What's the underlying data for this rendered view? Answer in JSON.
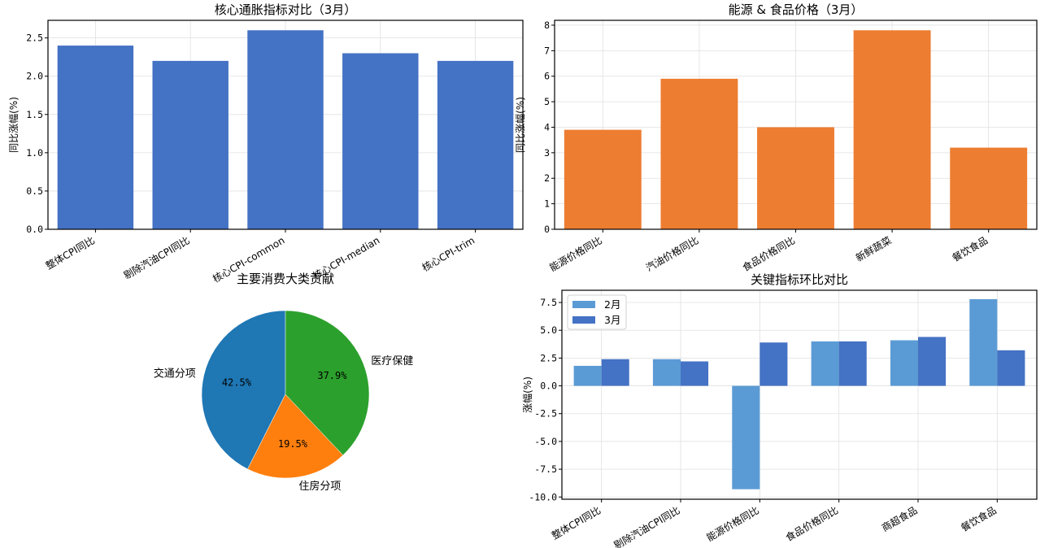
{
  "chart_data": [
    {
      "type": "bar",
      "title": "核心通胀指标对比（3月）",
      "xlabel": "",
      "ylabel": "同比涨幅(%)",
      "categories": [
        "整体CPI同比",
        "剔除汽油CPI同比",
        "核心CPI-common",
        "核心CPI-median",
        "核心CPI-trim"
      ],
      "values": [
        2.4,
        2.2,
        2.6,
        2.3,
        2.2
      ],
      "ylim": [
        0,
        2.73
      ],
      "yticks": [
        "0.0",
        "0.5",
        "1.0",
        "1.5",
        "2.0",
        "2.5"
      ],
      "color": "#4472C4",
      "grid": true
    },
    {
      "type": "bar",
      "title": "能源 & 食品价格（3月）",
      "xlabel": "",
      "ylabel": "同比涨幅(%)",
      "categories": [
        "能源价格同比",
        "汽油价格同比",
        "食品价格同比",
        "新鲜蔬菜",
        "餐饮食品"
      ],
      "values": [
        3.9,
        5.9,
        4.0,
        7.8,
        3.2
      ],
      "ylim": [
        0,
        8.19
      ],
      "yticks": [
        "0",
        "1",
        "2",
        "3",
        "4",
        "5",
        "6",
        "7",
        "8"
      ],
      "color": "#ED7D31",
      "grid": true
    },
    {
      "type": "pie",
      "title": "主要消费大类贡献",
      "labels": [
        "交通分项",
        "住房分项",
        "医疗保健"
      ],
      "values": [
        42.5,
        19.5,
        37.9
      ],
      "pct_labels": [
        "42.5%",
        "19.5%",
        "37.9%"
      ],
      "colors": [
        "#1f77b4",
        "#ff7f0e",
        "#2ca02c"
      ],
      "startangle": 90
    },
    {
      "type": "bar",
      "title": "关键指标环比对比",
      "xlabel": "",
      "ylabel": "涨幅(%)",
      "categories": [
        "整体CPI同比",
        "剔除汽油CPI同比",
        "能源价格同比",
        "食品价格同比",
        "商超食品",
        "餐饮食品"
      ],
      "series": [
        {
          "name": "2月",
          "values": [
            1.8,
            2.4,
            -9.3,
            4.0,
            4.1,
            7.8
          ],
          "color": "#5B9BD5"
        },
        {
          "name": "3月",
          "values": [
            2.4,
            2.2,
            3.9,
            4.0,
            4.4,
            3.2
          ],
          "color": "#4472C4"
        }
      ],
      "ylim": [
        -10.2,
        8.6
      ],
      "yticks": [
        "-10.0",
        "-7.5",
        "-5.0",
        "-2.5",
        "0.0",
        "2.5",
        "5.0",
        "7.5"
      ],
      "legend_position": "upper left",
      "grid": true
    }
  ]
}
